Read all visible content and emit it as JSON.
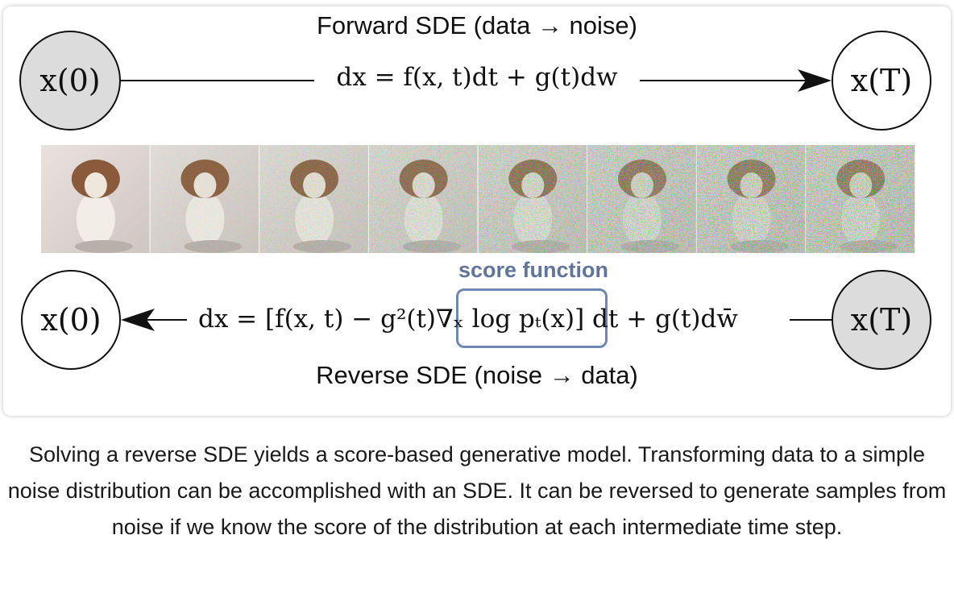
{
  "forward": {
    "title": "Forward SDE (data → noise)",
    "start_node": "x(0)",
    "end_node": "x(T)",
    "equation": "dx = f(x, t)dt + g(t)dw"
  },
  "reverse": {
    "title": "Reverse SDE (noise → data)",
    "start_node": "x(T)",
    "end_node": "x(0)",
    "equation": "dx = [f(x, t) − g²(t)∇ₓ log pₜ(x)] dt + g(t)dw̄",
    "highlight_label": "score function",
    "highlight_color": "#6e87b4"
  },
  "noise_strip": {
    "frame_count": 8,
    "noise_levels": [
      0.0,
      0.22,
      0.4,
      0.58,
      0.76,
      0.9,
      0.97,
      1.0
    ]
  },
  "caption": "Solving a reverse SDE yields a score-based generative model. Transforming data to a simple noise distribution can be accomplished with an SDE. It can be reversed to generate samples from noise if we know the score of the distribution at each intermediate time step."
}
